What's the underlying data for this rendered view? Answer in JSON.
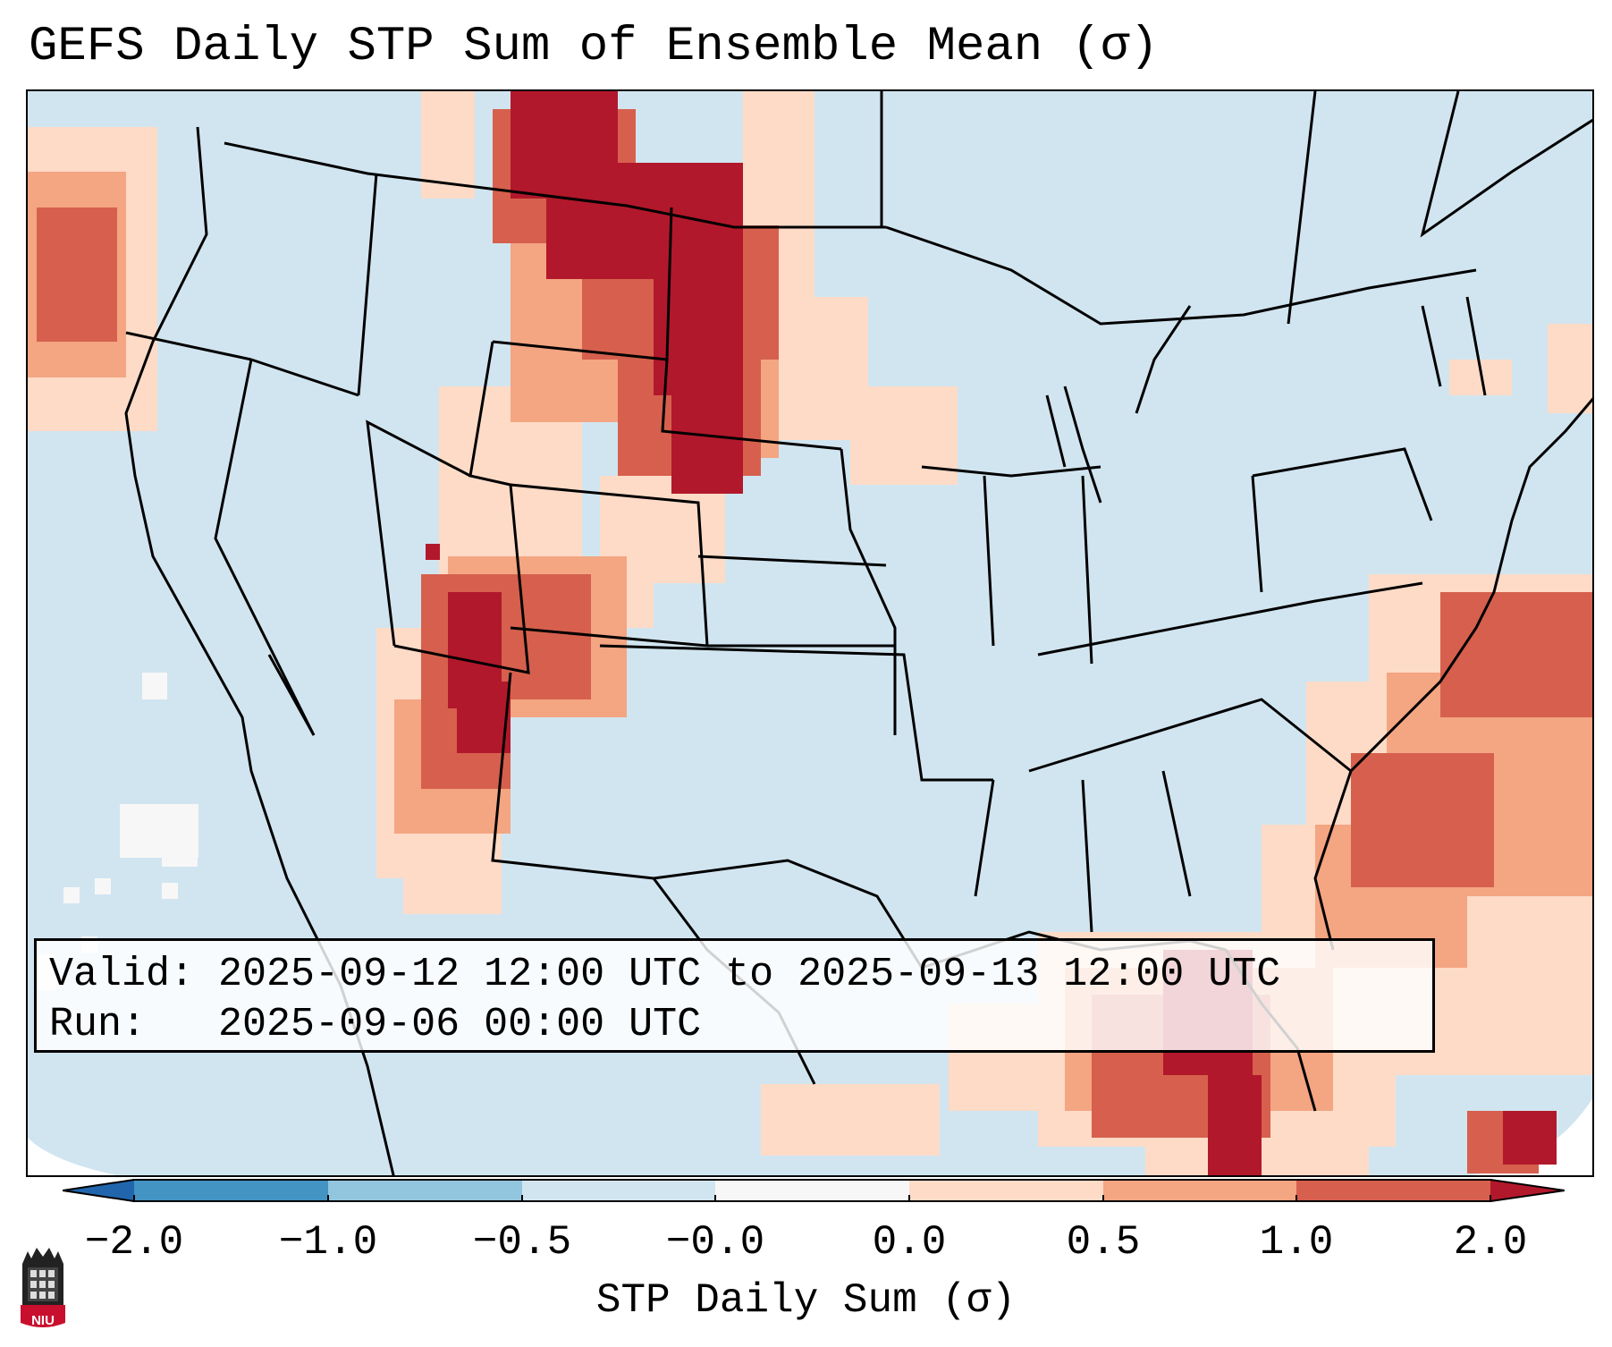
{
  "title": "GEFS Daily STP Sum of Ensemble Mean (σ)",
  "info": {
    "valid_label": "Valid:",
    "valid_value": "2025-09-12 12:00 UTC to 2025-09-13 12:00 UTC",
    "run_label": "Run:",
    "run_value": "2025-09-06 00:00 UTC"
  },
  "colorbar": {
    "label": "STP Daily Sum (σ)",
    "tick_labels": [
      "−2.0",
      "−1.0",
      "−0.5",
      "−0.0",
      "0.0",
      "0.5",
      "1.0",
      "2.0"
    ],
    "bins": [
      {
        "range": "< -2.0",
        "color": "#2166ac"
      },
      {
        "range": "-2.0 to -1.0",
        "color": "#4393c3"
      },
      {
        "range": "-1.0 to -0.5",
        "color": "#92c5de"
      },
      {
        "range": "-0.5 to -0.0",
        "color": "#d1e5f0"
      },
      {
        "range": "-0.0 to 0.0",
        "color": "#f7f7f7"
      },
      {
        "range": "0.0 to 0.5",
        "color": "#fddbc7"
      },
      {
        "range": "0.5 to 1.0",
        "color": "#f4a582"
      },
      {
        "range": "1.0 to 2.0",
        "color": "#d6604d"
      },
      {
        "range": "> 2.0",
        "color": "#b2182b"
      }
    ]
  },
  "logo": {
    "text": "NIU",
    "color": "#c8102e"
  }
}
